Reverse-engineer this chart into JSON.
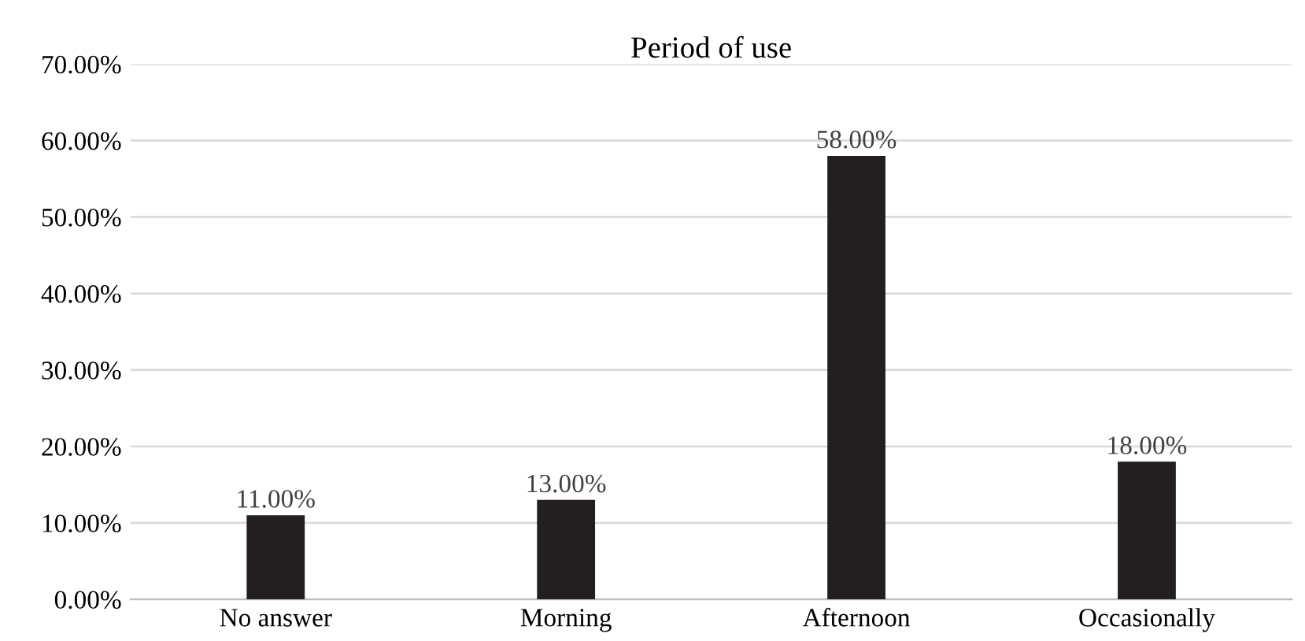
{
  "chart_data": {
    "type": "bar",
    "title": "Period of use",
    "categories": [
      "No answer",
      "Morning",
      "Afternoon",
      "Occasionally"
    ],
    "values": [
      11,
      13,
      58,
      18
    ],
    "value_labels": [
      "11.00%",
      "13.00%",
      "58.00%",
      "18.00%"
    ],
    "color": "#231f20",
    "ylim": [
      0,
      70
    ],
    "yticks": [
      {
        "value": 0,
        "label": "0.00%"
      },
      {
        "value": 10,
        "label": "10.00%"
      },
      {
        "value": 20,
        "label": "20.00%"
      },
      {
        "value": 30,
        "label": "30.00%"
      },
      {
        "value": 40,
        "label": "40.00%"
      },
      {
        "value": 50,
        "label": "50.00%"
      },
      {
        "value": 60,
        "label": "60.00%"
      },
      {
        "value": 70,
        "label": "70.00%"
      }
    ],
    "grid": "y"
  }
}
